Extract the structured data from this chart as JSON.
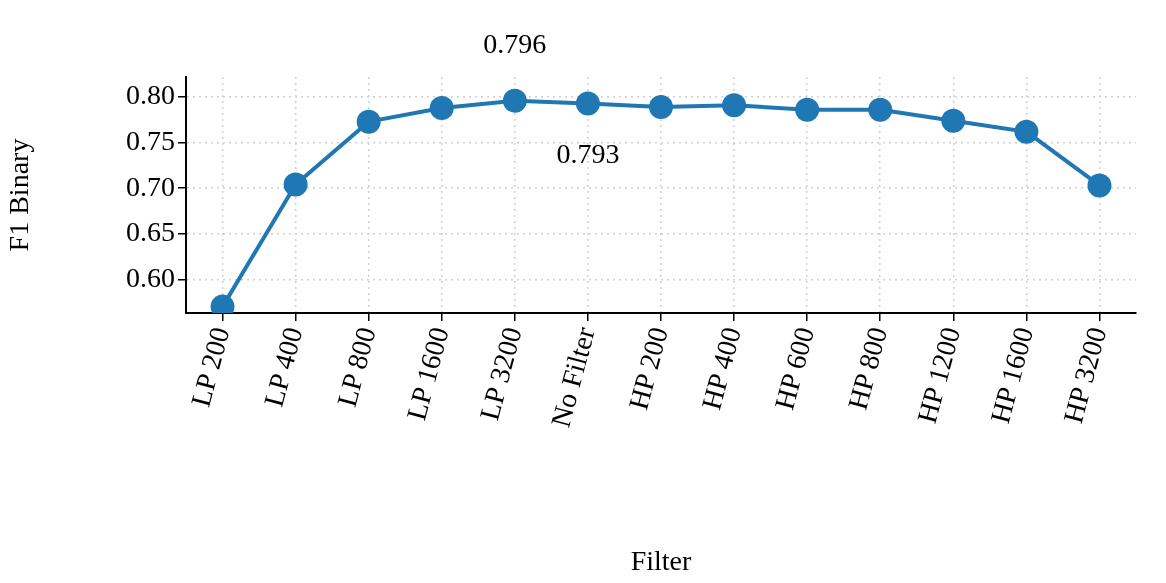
{
  "chart_data": {
    "type": "line",
    "xlabel": "Filter",
    "ylabel": "F1 Binary",
    "categories": [
      "LP 200",
      "LP 400",
      "LP 800",
      "LP 1600",
      "LP 3200",
      "No Filter",
      "HP 200",
      "HP 400",
      "HP 600",
      "HP 800",
      "HP 1200",
      "HP 1600",
      "HP 3200"
    ],
    "series": [
      {
        "color": "#1f77b4",
        "values": [
          0.57,
          0.704,
          0.773,
          0.788,
          0.796,
          0.793,
          0.789,
          0.791,
          0.786,
          0.786,
          0.774,
          0.762,
          0.703
        ]
      }
    ],
    "ylim": [
      0.563,
      0.822
    ],
    "yticks": [
      {
        "value": 0.6,
        "label": "0.60"
      },
      {
        "value": 0.65,
        "label": "0.65"
      },
      {
        "value": 0.7,
        "label": "0.70"
      },
      {
        "value": 0.75,
        "label": "0.75"
      },
      {
        "value": 0.8,
        "label": "0.80"
      }
    ],
    "annotations": [
      {
        "text": "0.796",
        "x": "LP 3200",
        "y": 0.796
      },
      {
        "text": "0.793",
        "x": "No Filter",
        "y": 0.793
      }
    ],
    "grid": true,
    "marker": "circle",
    "line_style": "solid",
    "legend": false
  }
}
